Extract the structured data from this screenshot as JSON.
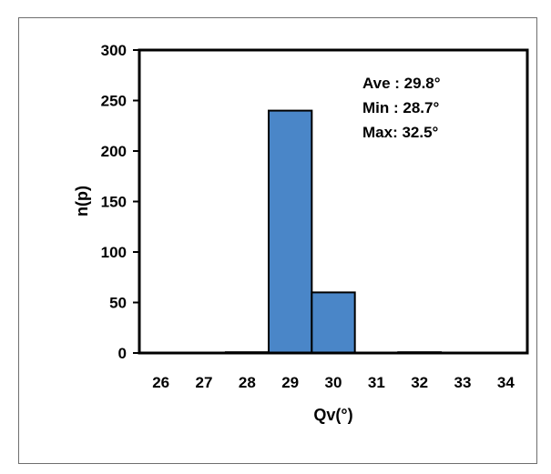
{
  "chart_data": {
    "type": "bar",
    "categories": [
      "26",
      "27",
      "28",
      "29",
      "30",
      "31",
      "32",
      "33",
      "34"
    ],
    "values": [
      0,
      0,
      1,
      240,
      60,
      0,
      1,
      0,
      0
    ],
    "title": "",
    "xlabel": "Qv(°)",
    "ylabel": "n(p)",
    "ylim": [
      0,
      300
    ],
    "yticks": [
      0,
      50,
      100,
      150,
      200,
      250,
      300
    ],
    "grid": false,
    "bar_color": "#4a86c8",
    "bar_edge_color": "#000000",
    "annotations": [
      "Ave : 29.8°",
      "Min : 28.7°",
      "Max: 32.5°"
    ]
  }
}
